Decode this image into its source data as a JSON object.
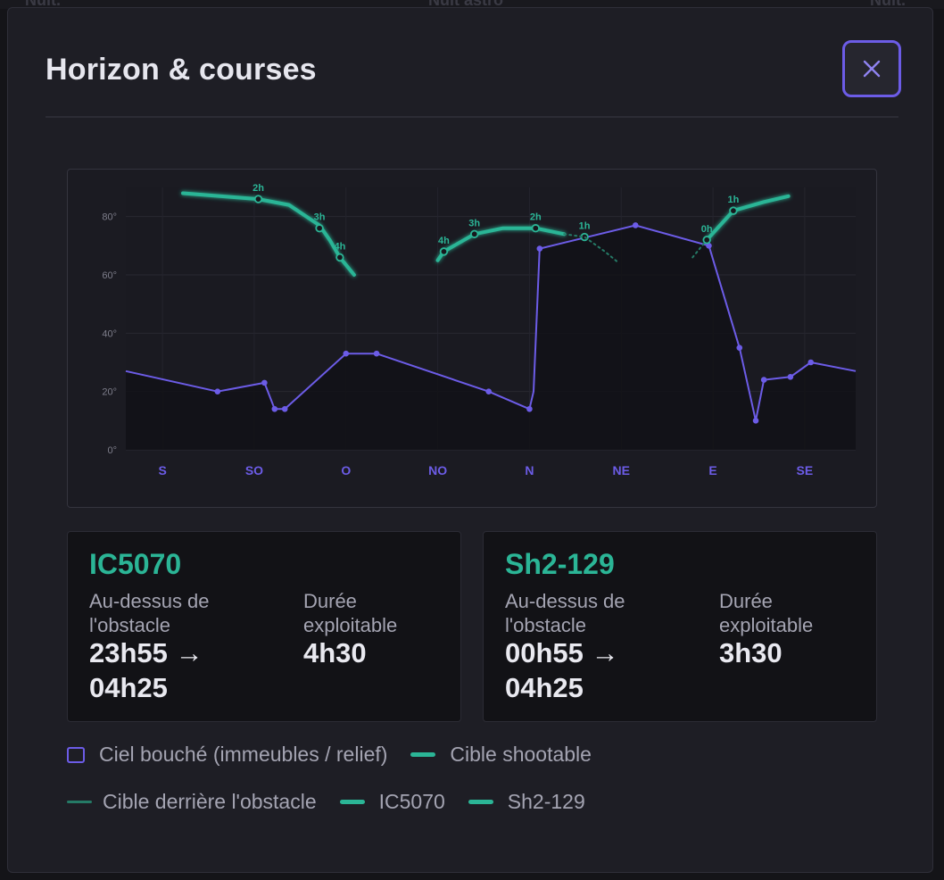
{
  "modal": {
    "title": "Horizon & courses",
    "close_icon": "close-icon"
  },
  "colors": {
    "accent": "#6c5ce7",
    "target": "#2bb596",
    "target_hidden": "#257a66",
    "horizon_fill": "#121216"
  },
  "chart_data": {
    "type": "line",
    "xlabel": "",
    "ylabel": "",
    "x_ticks": [
      "S",
      "SO",
      "O",
      "NO",
      "N",
      "NE",
      "E",
      "SE"
    ],
    "x_tick_azimuth": [
      180,
      225,
      270,
      315,
      0,
      45,
      90,
      135
    ],
    "xlim": [
      162,
      520
    ],
    "ylim": [
      0,
      90
    ],
    "y_ticks": [
      "0°",
      "20°",
      "40°",
      "60°",
      "80°"
    ],
    "y_tick_values": [
      0,
      20,
      40,
      60,
      80
    ],
    "grid": true,
    "series": [
      {
        "kind": "horizon",
        "points": [
          [
            162,
            27
          ],
          [
            207,
            20
          ],
          [
            230,
            23
          ],
          [
            235,
            14
          ],
          [
            240,
            14
          ],
          [
            270,
            33
          ],
          [
            285,
            33
          ],
          [
            340,
            20
          ],
          [
            360,
            14
          ],
          [
            362,
            20
          ],
          [
            365,
            69
          ],
          [
            412,
            77
          ],
          [
            448,
            70
          ],
          [
            463,
            35
          ],
          [
            471,
            10
          ],
          [
            475,
            24
          ],
          [
            488,
            25
          ],
          [
            498,
            30
          ],
          [
            520,
            27
          ]
        ],
        "markers": [
          [
            207,
            20
          ],
          [
            230,
            23
          ],
          [
            235,
            14
          ],
          [
            240,
            14
          ],
          [
            270,
            33
          ],
          [
            285,
            33
          ],
          [
            340,
            20
          ],
          [
            360,
            14
          ],
          [
            365,
            69
          ],
          [
            412,
            77
          ],
          [
            448,
            70
          ],
          [
            463,
            35
          ],
          [
            471,
            10
          ],
          [
            475,
            24
          ],
          [
            488,
            25
          ],
          [
            498,
            30
          ]
        ]
      },
      {
        "kind": "track",
        "points": [
          [
            190,
            88
          ],
          [
            227,
            86
          ],
          [
            242,
            84
          ],
          [
            257,
            77
          ],
          [
            262,
            72
          ],
          [
            267,
            66
          ],
          [
            274,
            60
          ]
        ],
        "markers": [
          {
            "x": 227,
            "y": 86,
            "label": "2h"
          },
          {
            "x": 257,
            "y": 76,
            "label": "3h"
          },
          {
            "x": 267,
            "y": 66,
            "label": "4h"
          }
        ]
      },
      {
        "kind": "track",
        "points": [
          [
            315,
            65
          ],
          [
            318,
            68
          ],
          [
            333,
            74
          ],
          [
            347,
            76
          ],
          [
            363,
            76
          ],
          [
            377,
            74
          ]
        ],
        "markers": [
          {
            "x": 318,
            "y": 68,
            "label": "4h"
          },
          {
            "x": 333,
            "y": 74,
            "label": "3h"
          },
          {
            "x": 363,
            "y": 76,
            "label": "2h"
          },
          {
            "x": 387,
            "y": 73,
            "label": "1h"
          }
        ]
      },
      {
        "kind": "hidden",
        "points": [
          [
            377,
            74
          ],
          [
            387,
            73
          ],
          [
            397,
            68
          ],
          [
            404,
            64
          ]
        ]
      },
      {
        "kind": "hidden",
        "points": [
          [
            440,
            66
          ],
          [
            447,
            72
          ]
        ]
      },
      {
        "kind": "track",
        "points": [
          [
            447,
            72
          ],
          [
            460,
            82
          ],
          [
            475,
            85
          ],
          [
            487,
            87
          ]
        ],
        "markers": [
          {
            "x": 447,
            "y": 72,
            "label": "0h"
          },
          {
            "x": 460,
            "y": 82,
            "label": "1h"
          }
        ]
      }
    ]
  },
  "cards": [
    {
      "name": "IC5070",
      "above_label": "Au-dessus de l'obstacle",
      "above_line1": "23h55 →",
      "above_line2": "04h25",
      "duration_label": "Durée exploitable",
      "duration_value": "4h30"
    },
    {
      "name": "Sh2-129",
      "above_label": "Au-dessus de l'obstacle",
      "above_line1": "00h55 →",
      "above_line2": "04h25",
      "duration_label": "Durée exploitable",
      "duration_value": "3h30"
    }
  ],
  "legend": {
    "obstructed": "Ciel bouché (immeubles / relief)",
    "shootable": "Cible shootable",
    "hidden": "Cible derrière l'obstacle",
    "target1": "IC5070",
    "target2": "Sh2-129"
  },
  "background": {
    "left_label": "Nuit.",
    "center_label": "Nuit astro",
    "right_label": "Nuit."
  }
}
